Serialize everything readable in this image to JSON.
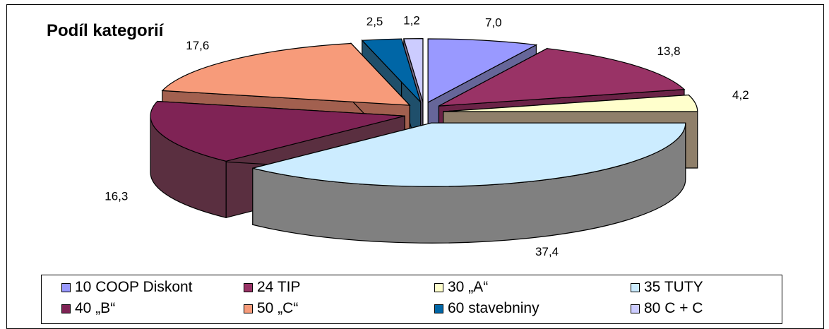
{
  "chart_data": {
    "type": "pie",
    "title": "Podíl kategorií",
    "slices": [
      {
        "name": "10 COOP Diskont",
        "value": 7.0,
        "label": "7,0",
        "color": "#9999ff",
        "side": "#666699"
      },
      {
        "name": "24 TIP",
        "value": 13.8,
        "label": "13,8",
        "color": "#993366",
        "side": "#6b2347"
      },
      {
        "name": "30 „A“",
        "value": 4.2,
        "label": "4,2",
        "color": "#ffffcc",
        "side": "#8f7f6a"
      },
      {
        "name": "35 TUTY",
        "value": 37.4,
        "label": "37,4",
        "color": "#ccecff",
        "side": "#808080"
      },
      {
        "name": "40 „B“",
        "value": 16.3,
        "label": "16,3",
        "color": "#7f2355",
        "side": "#5a2f40"
      },
      {
        "name": "50 „C“",
        "value": 17.6,
        "label": "17,6",
        "color": "#f79b7a",
        "side": "#a2604f"
      },
      {
        "name": "60 stavebniny",
        "value": 2.5,
        "label": "2,5",
        "color": "#0066a6",
        "side": "#1f4f6b"
      },
      {
        "name": "80 C + C",
        "value": 1.2,
        "label": "1,2",
        "color": "#ccccff",
        "side": "#7a6f8a"
      }
    ],
    "legend_position": "bottom",
    "style": "3d-exploded"
  }
}
